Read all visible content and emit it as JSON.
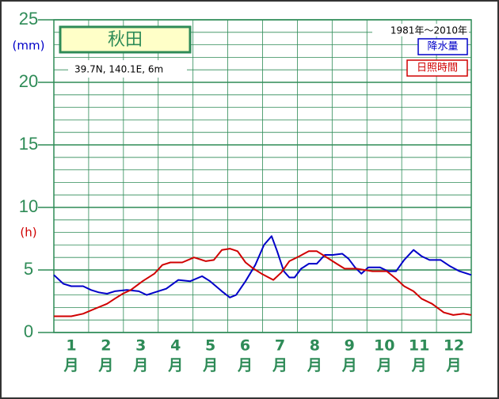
{
  "chart_data": {
    "type": "line",
    "title": "秋田",
    "subtitle": "39.7N,  140.1E,  6m",
    "annotation": "1981年〜2010年",
    "y_label_left": "(mm)",
    "y_label_right": "(h)",
    "categories": [
      "1",
      "2",
      "3",
      "4",
      "5",
      "6",
      "7",
      "8",
      "9",
      "10",
      "11",
      "12"
    ],
    "category_unit": "月",
    "xlim": [
      0,
      12
    ],
    "xticks": [
      0,
      1,
      2,
      3,
      4,
      5,
      6,
      7,
      8,
      9,
      10,
      11,
      12
    ],
    "ylim": [
      0,
      25
    ],
    "yticks": [
      0,
      5,
      10,
      15,
      20,
      25
    ],
    "yminorticks": [
      1,
      2,
      3,
      4,
      6,
      7,
      8,
      9,
      11,
      12,
      13,
      14,
      16,
      17,
      18,
      19,
      21,
      22,
      23,
      24
    ],
    "grid": true,
    "legend": "top-right",
    "series": [
      {
        "name": "降水量",
        "color": "#0000c8",
        "x": [
          0,
          0.27,
          0.5,
          0.84,
          1.07,
          1.3,
          1.53,
          1.75,
          2.1,
          2.44,
          2.67,
          2.89,
          3.23,
          3.58,
          3.92,
          4.26,
          4.49,
          4.83,
          5.06,
          5.24,
          5.51,
          5.79,
          6.04,
          6.26,
          6.42,
          6.61,
          6.77,
          6.92,
          7.11,
          7.33,
          7.56,
          7.79,
          8.02,
          8.29,
          8.47,
          8.66,
          8.84,
          9.04,
          9.38,
          9.61,
          9.84,
          10.07,
          10.34,
          10.57,
          10.8,
          11.12,
          11.39,
          11.66,
          12
        ],
        "values": [
          4.6,
          3.9,
          3.7,
          3.7,
          3.4,
          3.2,
          3.1,
          3.3,
          3.4,
          3.3,
          3.0,
          3.2,
          3.5,
          4.2,
          4.1,
          4.5,
          4.1,
          3.3,
          2.8,
          3.0,
          4.1,
          5.4,
          7.0,
          7.7,
          6.5,
          4.9,
          4.4,
          4.4,
          5.1,
          5.5,
          5.5,
          6.2,
          6.2,
          6.3,
          5.9,
          5.2,
          4.7,
          5.2,
          5.2,
          4.9,
          4.9,
          5.8,
          6.6,
          6.1,
          5.8,
          5.8,
          5.3,
          4.9,
          4.6
        ]
      },
      {
        "name": "日照時間",
        "color": "#d00000",
        "x": [
          0,
          0.5,
          0.84,
          1.18,
          1.53,
          1.75,
          1.98,
          2.21,
          2.55,
          2.89,
          3.12,
          3.35,
          3.69,
          4.03,
          4.37,
          4.6,
          4.83,
          5.06,
          5.28,
          5.51,
          5.74,
          5.97,
          6.31,
          6.54,
          6.77,
          7.06,
          7.33,
          7.56,
          7.79,
          8.13,
          8.36,
          8.7,
          9.16,
          9.57,
          9.84,
          10.07,
          10.34,
          10.57,
          10.87,
          11.21,
          11.48,
          11.78,
          12
        ],
        "values": [
          1.3,
          1.3,
          1.5,
          1.9,
          2.3,
          2.7,
          3.1,
          3.4,
          4.1,
          4.7,
          5.4,
          5.6,
          5.6,
          6.0,
          5.7,
          5.8,
          6.6,
          6.7,
          6.5,
          5.6,
          5.1,
          4.7,
          4.2,
          4.8,
          5.7,
          6.1,
          6.5,
          6.5,
          6.1,
          5.5,
          5.1,
          5.1,
          4.9,
          4.9,
          4.3,
          3.7,
          3.3,
          2.7,
          2.3,
          1.6,
          1.4,
          1.5,
          1.4
        ]
      }
    ]
  }
}
